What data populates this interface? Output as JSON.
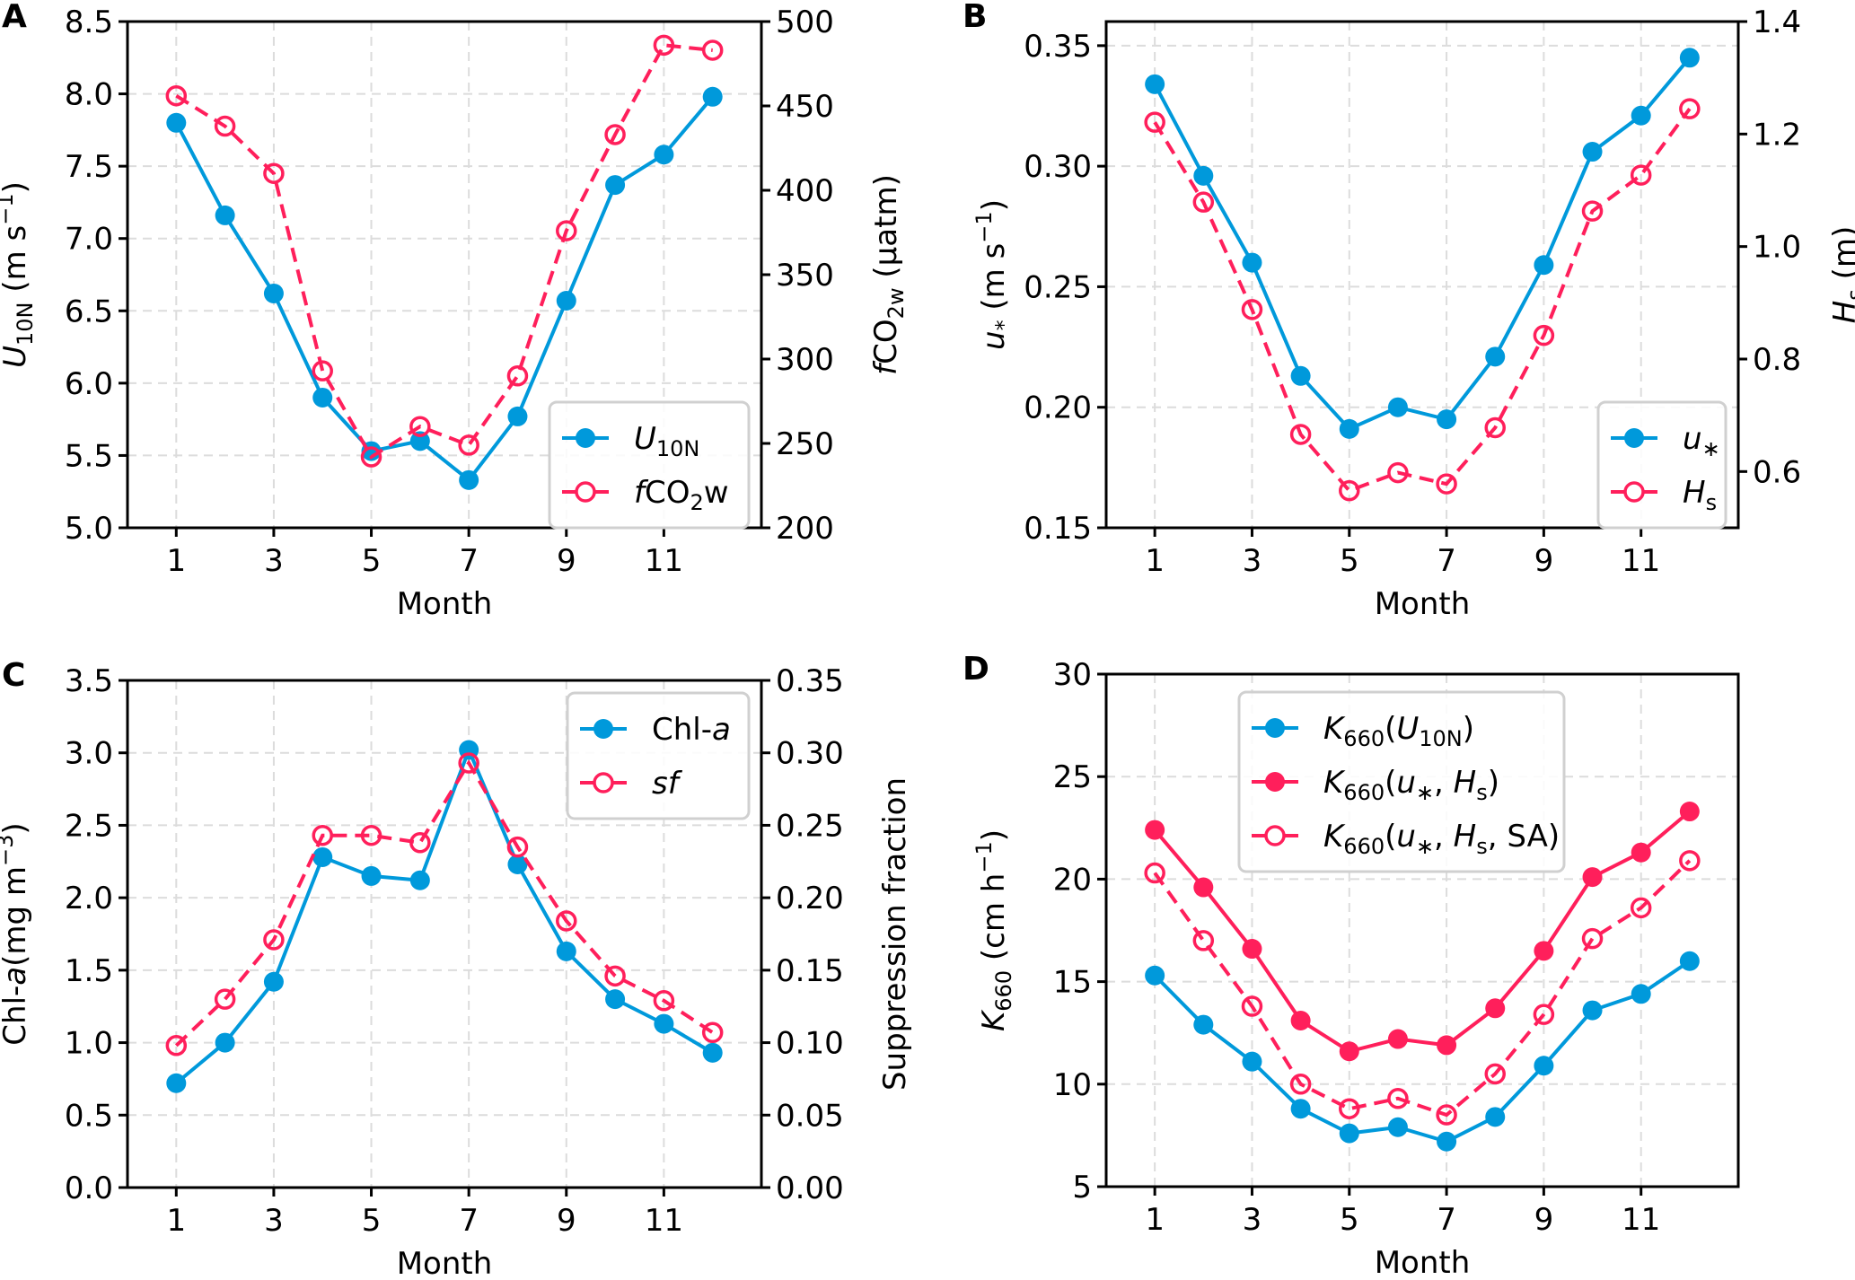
{
  "colors": {
    "blue": "#0099DB",
    "red": "#FF1F5B"
  },
  "chart_data": [
    {
      "panel": "A",
      "type": "line",
      "xlabel": "Month",
      "ylabel": "U10N (m s^-1)",
      "ylabel_parts": {
        "main": "U",
        "sub": "10N",
        "rest": " (m s",
        "sup": "−1",
        "close": ")"
      },
      "y2label": "fCO2w (µatm)",
      "y2label_parts": {
        "pre": "f",
        "main": "CO",
        "sub": "2w",
        "rest": " (µatm)"
      },
      "x": [
        1,
        2,
        3,
        4,
        5,
        6,
        7,
        8,
        9,
        10,
        11,
        12
      ],
      "xlim": [
        0,
        13
      ],
      "xticks": [
        1,
        3,
        5,
        7,
        9,
        11
      ],
      "ylim": [
        5.0,
        8.5
      ],
      "yticks": [
        "5.0",
        "5.5",
        "6.0",
        "6.5",
        "7.0",
        "7.5",
        "8.0",
        "8.5"
      ],
      "y2lim": [
        200,
        500
      ],
      "y2ticks": [
        "200",
        "250",
        "300",
        "350",
        "400",
        "450",
        "500"
      ],
      "grid": true,
      "legend_position": "lower-right",
      "series": [
        {
          "name": "U10N",
          "label_main": "U",
          "label_sub": "10N",
          "axis": "left",
          "color": "blue",
          "marker": "filled",
          "linestyle": "solid",
          "values": [
            7.8,
            7.16,
            6.62,
            5.9,
            5.53,
            5.6,
            5.33,
            5.77,
            6.57,
            7.37,
            7.58,
            7.98
          ]
        },
        {
          "name": "fCO2w",
          "label_pre": "f",
          "label_main": "CO",
          "label_sub": "2",
          "label_post": "w",
          "axis": "right",
          "color": "red",
          "marker": "open",
          "linestyle": "dashed",
          "values": [
            456,
            438,
            410,
            293,
            242,
            260,
            249,
            290,
            376,
            433,
            486,
            483
          ]
        }
      ]
    },
    {
      "panel": "B",
      "type": "line",
      "xlabel": "Month",
      "ylabel": "u* (m s^-1)",
      "ylabel_parts": {
        "main": "u",
        "sub": "*",
        "rest": " (m s",
        "sup": "−1",
        "close": ")"
      },
      "y2label": "Hs (m)",
      "y2label_parts": {
        "main": "H",
        "sub": "s",
        "rest": " (m)"
      },
      "x": [
        1,
        2,
        3,
        4,
        5,
        6,
        7,
        8,
        9,
        10,
        11,
        12
      ],
      "xlim": [
        0,
        13
      ],
      "xticks": [
        1,
        3,
        5,
        7,
        9,
        11
      ],
      "ylim": [
        0.15,
        0.36
      ],
      "yticks": [
        "0.15",
        "0.20",
        "0.25",
        "0.30",
        "0.35"
      ],
      "y2lim": [
        0.5,
        1.4
      ],
      "y2ticks": [
        "0.6",
        "0.8",
        "1.0",
        "1.2",
        "1.4"
      ],
      "grid": true,
      "legend_position": "lower-right",
      "series": [
        {
          "name": "u*",
          "label_main": "u",
          "label_sub": "*",
          "axis": "left",
          "color": "blue",
          "marker": "filled",
          "linestyle": "solid",
          "values": [
            0.334,
            0.296,
            0.26,
            0.213,
            0.191,
            0.2,
            0.195,
            0.221,
            0.259,
            0.306,
            0.321,
            0.345
          ]
        },
        {
          "name": "Hs",
          "label_main": "H",
          "label_sub": "s",
          "axis": "right",
          "color": "red",
          "marker": "open",
          "linestyle": "dashed",
          "values": [
            1.221,
            1.079,
            0.888,
            0.666,
            0.566,
            0.598,
            0.578,
            0.678,
            0.842,
            1.063,
            1.127,
            1.245
          ]
        }
      ]
    },
    {
      "panel": "C",
      "type": "line",
      "xlabel": "Month",
      "ylabel": "Chl-a (mg m^-3)",
      "ylabel_parts": {
        "main": "Chl-",
        "ital": "a",
        "rest": " (mg m",
        "sup": "−3",
        "close": ")"
      },
      "y2label": "Suppression fraction",
      "x": [
        1,
        2,
        3,
        4,
        5,
        6,
        7,
        8,
        9,
        10,
        11,
        12
      ],
      "xlim": [
        0,
        13
      ],
      "xticks": [
        1,
        3,
        5,
        7,
        9,
        11
      ],
      "ylim": [
        0.0,
        3.5
      ],
      "yticks": [
        "0.0",
        "0.5",
        "1.0",
        "1.5",
        "2.0",
        "2.5",
        "3.0",
        "3.5"
      ],
      "y2lim": [
        0.0,
        0.35
      ],
      "y2ticks": [
        "0.00",
        "0.05",
        "0.10",
        "0.15",
        "0.20",
        "0.25",
        "0.30",
        "0.35"
      ],
      "grid": true,
      "legend_position": "upper-right",
      "series": [
        {
          "name": "Chl-a",
          "label_main": "Chl-",
          "label_ital": "a",
          "axis": "left",
          "color": "blue",
          "marker": "filled",
          "linestyle": "solid",
          "values": [
            0.72,
            1.0,
            1.42,
            2.28,
            2.15,
            2.12,
            3.02,
            2.23,
            1.63,
            1.3,
            1.13,
            0.93
          ]
        },
        {
          "name": "sf",
          "label_ital": "sf",
          "axis": "right",
          "color": "red",
          "marker": "open",
          "linestyle": "dashed",
          "values": [
            0.098,
            0.13,
            0.171,
            0.243,
            0.243,
            0.238,
            0.293,
            0.235,
            0.184,
            0.146,
            0.129,
            0.107
          ]
        }
      ]
    },
    {
      "panel": "D",
      "type": "line",
      "xlabel": "Month",
      "ylabel": "K660 (cm h^-1)",
      "ylabel_parts": {
        "main": "K",
        "sub": "660",
        "rest": " (cm h",
        "sup": "−1",
        "close": ")"
      },
      "x": [
        1,
        2,
        3,
        4,
        5,
        6,
        7,
        8,
        9,
        10,
        11,
        12
      ],
      "xlim": [
        0,
        13
      ],
      "xticks": [
        1,
        3,
        5,
        7,
        9,
        11
      ],
      "ylim": [
        5,
        30
      ],
      "yticks": [
        "5",
        "10",
        "15",
        "20",
        "25",
        "30"
      ],
      "grid": true,
      "legend_position": "upper-center",
      "series": [
        {
          "name": "K660(U10N)",
          "legend": "K660(U10N)",
          "axis": "left",
          "color": "blue",
          "marker": "filled",
          "linestyle": "solid",
          "values": [
            15.3,
            12.9,
            11.1,
            8.8,
            7.6,
            7.9,
            7.2,
            8.4,
            10.9,
            13.6,
            14.4,
            16.0
          ]
        },
        {
          "name": "K660(u*, Hs)",
          "legend": "K660(u*, Hs)",
          "axis": "left",
          "color": "red",
          "marker": "filled",
          "linestyle": "solid",
          "values": [
            22.4,
            19.6,
            16.6,
            13.1,
            11.6,
            12.2,
            11.9,
            13.7,
            16.5,
            20.1,
            21.3,
            23.3
          ]
        },
        {
          "name": "K660(u*, Hs, SA)",
          "legend": "K660(u*, Hs, SA)",
          "axis": "left",
          "color": "red",
          "marker": "open",
          "linestyle": "dashed",
          "values": [
            20.3,
            17.0,
            13.8,
            10.0,
            8.8,
            9.3,
            8.5,
            10.5,
            13.4,
            17.1,
            18.6,
            20.9
          ]
        }
      ]
    }
  ]
}
